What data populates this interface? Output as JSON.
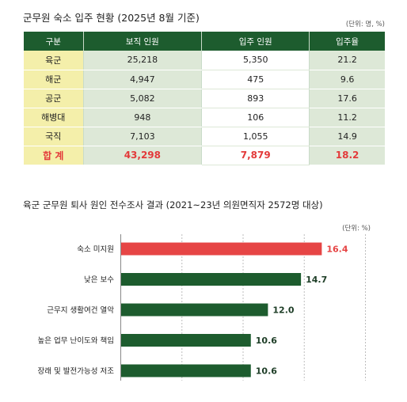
{
  "table": {
    "title": "군무원 숙소 입주 현황 (2025년 8월 기준)",
    "unit": "(단위: 명, %)",
    "headers": [
      "구분",
      "보직 인원",
      "입주 인원",
      "입주율"
    ],
    "rows": [
      [
        "육군",
        "25,218",
        "5,350",
        "21.2"
      ],
      [
        "해군",
        "4,947",
        "475",
        "9.6"
      ],
      [
        "공군",
        "5,082",
        "893",
        "17.6"
      ],
      [
        "해병대",
        "948",
        "106",
        "11.2"
      ],
      [
        "국직",
        "7,103",
        "1,055",
        "14.9"
      ]
    ],
    "total": [
      "합 계",
      "43,298",
      "7,879",
      "18.2"
    ],
    "colors": {
      "header": "#1d5c2e",
      "first_col": "#f4efaa",
      "shaded": "#dde8d7",
      "total_text": "#e33a3a"
    }
  },
  "chart_data": {
    "type": "bar",
    "orientation": "horizontal",
    "title": "육군 군무원 퇴사 원인 전수조사 결과 (2021~23년 의원면직자 2572명 대상)",
    "unit": "(단위: %)",
    "categories": [
      "숙소 미지원",
      "낮은 보수",
      "근무지 생활여건 열악",
      "높은 업무 난이도와 책임",
      "장래 및 발전가능성 저조"
    ],
    "values": [
      16.4,
      14.7,
      12.0,
      10.6,
      10.6
    ],
    "value_labels": [
      "16.4",
      "14.7",
      "12.0",
      "10.6",
      "10.6"
    ],
    "xlim": [
      0,
      20
    ],
    "grid": true,
    "colors": {
      "highlight": "#e64545",
      "default": "#1d5c2e"
    }
  }
}
